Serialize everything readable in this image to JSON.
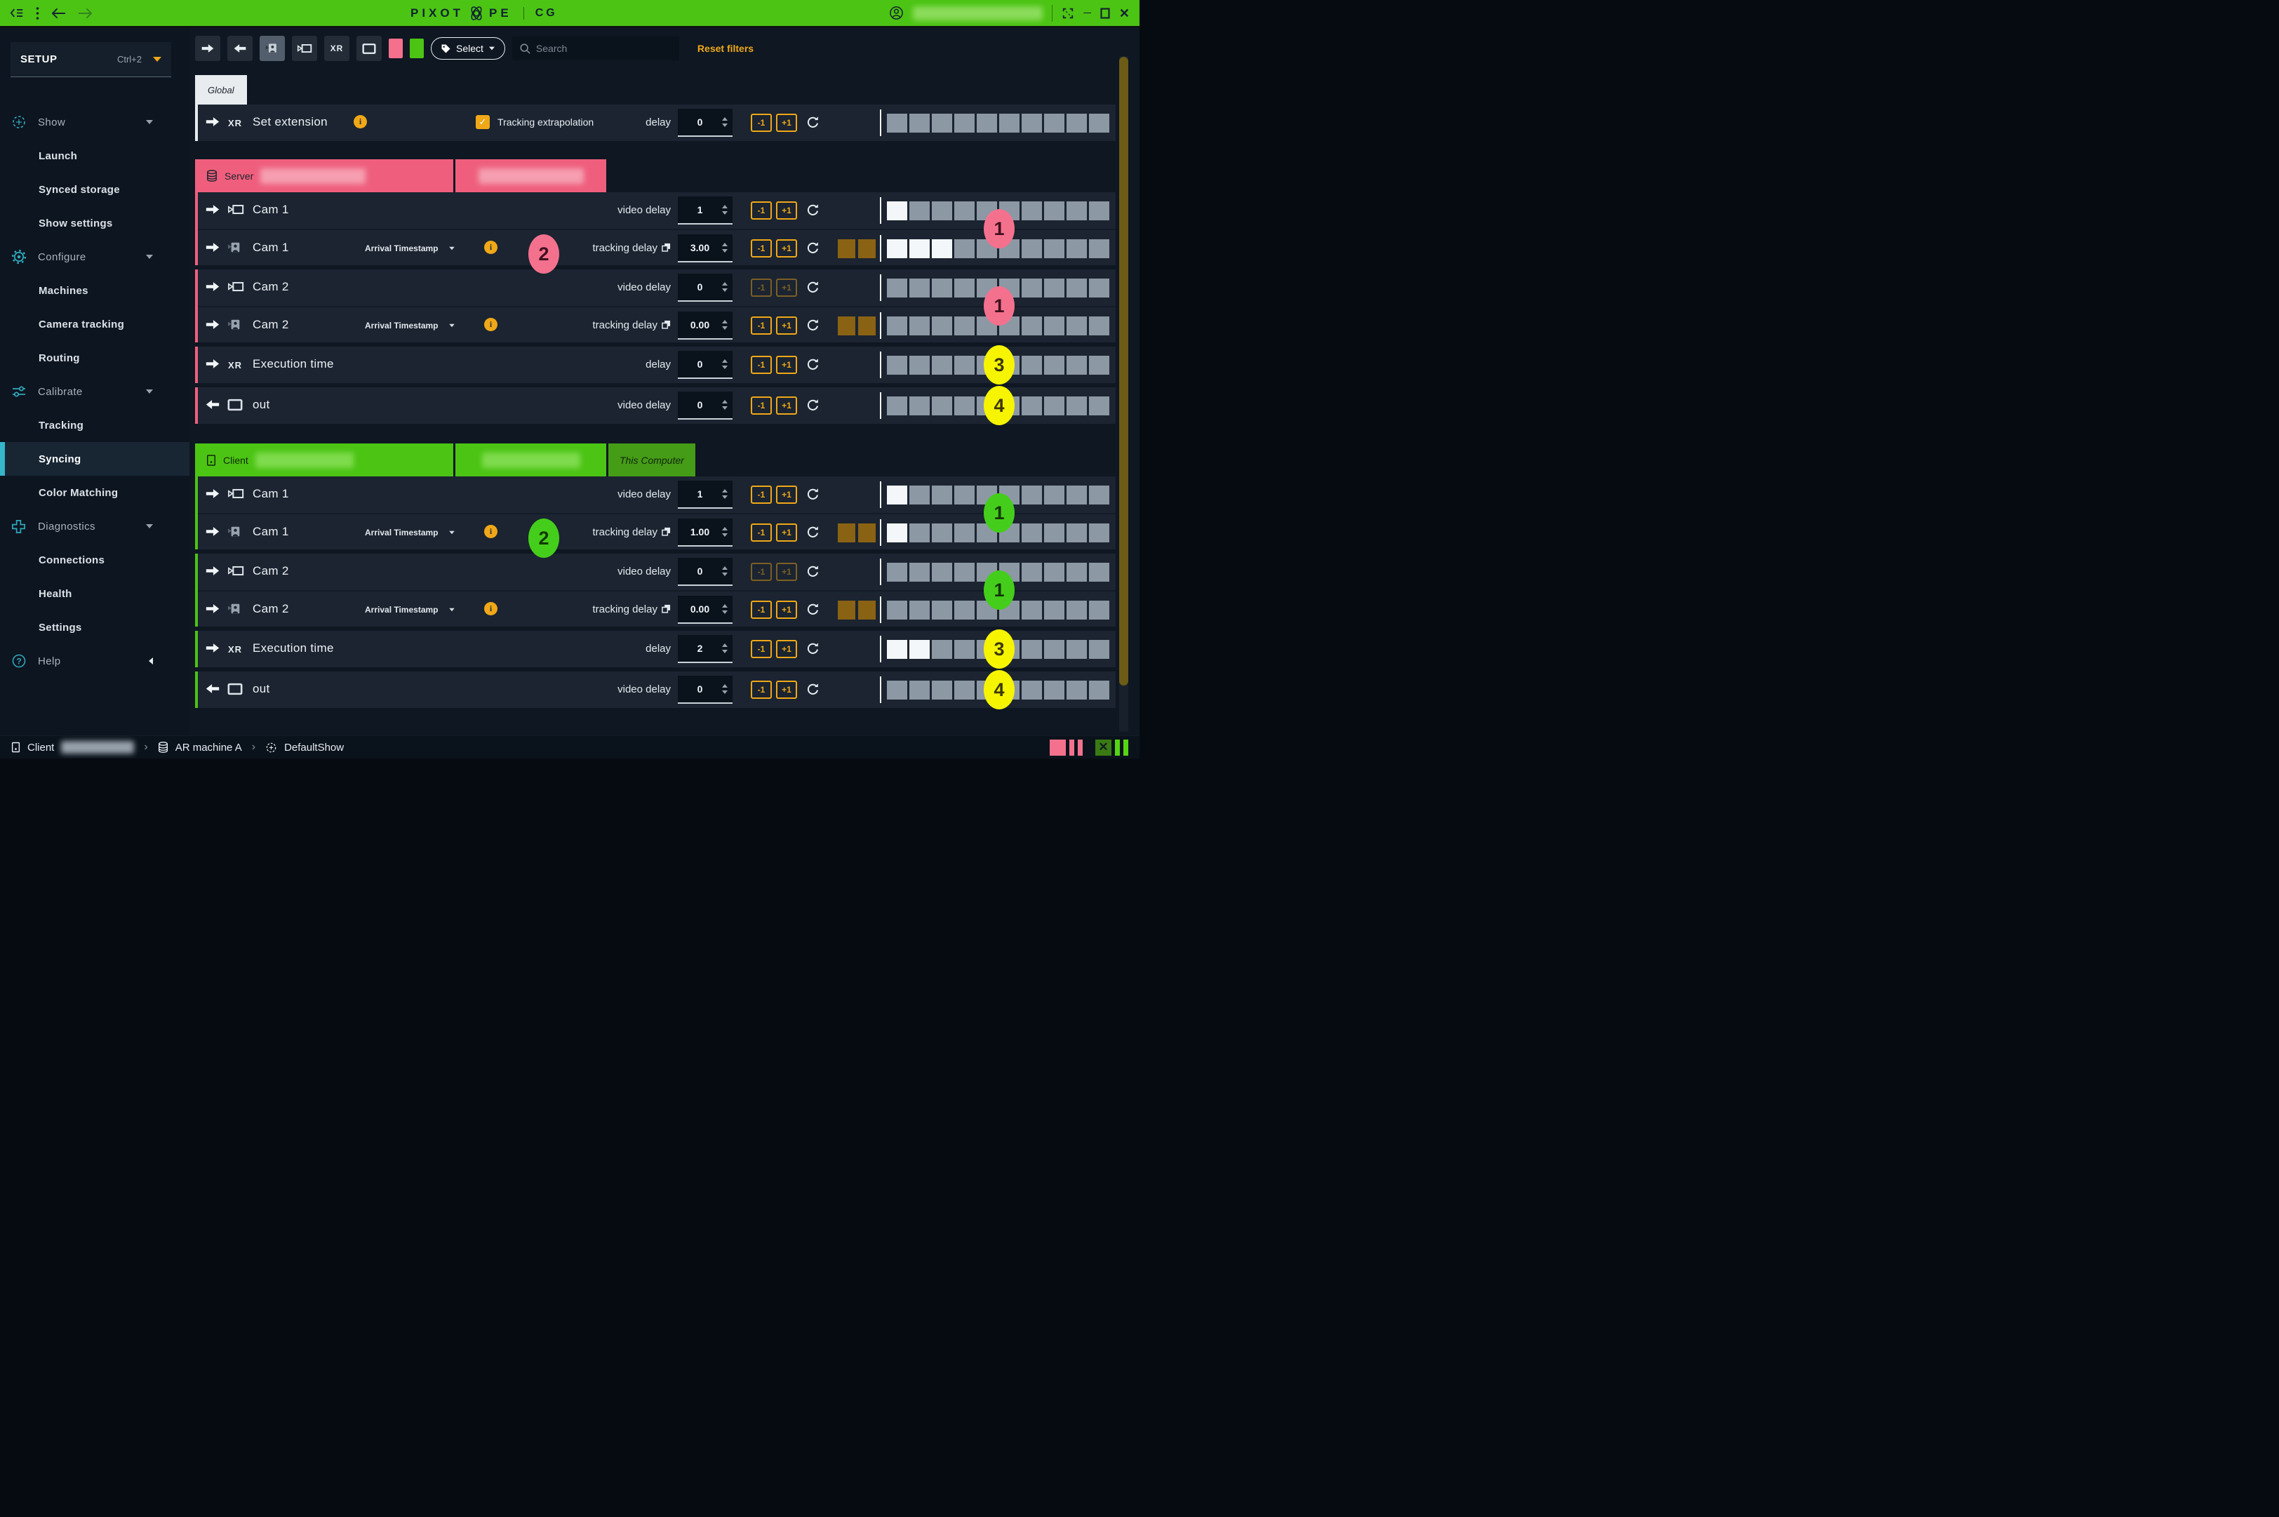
{
  "titlebar": {
    "logo_a": "PIXOT",
    "logo_b": "PE",
    "app": "CG"
  },
  "sidebar": {
    "setup_label": "SETUP",
    "setup_shortcut": "Ctrl+2",
    "items": [
      {
        "label": "Show",
        "icon": "show",
        "level": 0,
        "expand": "down"
      },
      {
        "label": "Launch",
        "level": 1
      },
      {
        "label": "Synced storage",
        "level": 1
      },
      {
        "label": "Show settings",
        "level": 1
      },
      {
        "label": "Configure",
        "icon": "gear",
        "level": 0,
        "expand": "down"
      },
      {
        "label": "Machines",
        "level": 1
      },
      {
        "label": "Camera tracking",
        "level": 1
      },
      {
        "label": "Routing",
        "level": 1
      },
      {
        "label": "Calibrate",
        "icon": "sliders",
        "level": 0,
        "expand": "down"
      },
      {
        "label": "Tracking",
        "level": 1
      },
      {
        "label": "Syncing",
        "level": 1,
        "selected": true
      },
      {
        "label": "Color Matching",
        "level": 1
      },
      {
        "label": "Diagnostics",
        "icon": "diagnostics",
        "level": 0,
        "expand": "down"
      },
      {
        "label": "Connections",
        "level": 1
      },
      {
        "label": "Health",
        "level": 1
      },
      {
        "label": "Settings",
        "level": 1
      },
      {
        "label": "Help",
        "icon": "help",
        "level": 0,
        "expand": "left"
      }
    ]
  },
  "toolbar": {
    "xr": "XR",
    "select": "Select",
    "search_placeholder": "Search",
    "reset": "Reset filters",
    "swatch_pink": "#F4708D",
    "swatch_green": "#4CC414"
  },
  "controls": {
    "minus": "-1",
    "plus": "+1"
  },
  "sections": {
    "global": {
      "tab": "Global",
      "row": {
        "type": "xr",
        "icon_label": "XR",
        "name": "Set extension",
        "info": true,
        "checkbox_label": "Tracking extrapolation",
        "checkbox_checked": true,
        "delay_label": "delay",
        "value": "0",
        "bar": {
          "pre": 0,
          "white": 0,
          "gray": 10
        }
      }
    },
    "server": {
      "tab_label": "Server",
      "accent": "pink",
      "badge_color": "pink",
      "groups": [
        {
          "badge_right": {
            "text": "1",
            "color": "pink"
          },
          "badge_left": {
            "text": "2",
            "color": "pink"
          },
          "rows": [
            {
              "type": "video",
              "name": "Cam 1",
              "delay_label": "video delay",
              "value": "1",
              "bar": {
                "pre": 0,
                "white": 1,
                "gray": 9
              }
            },
            {
              "type": "tracking",
              "name": "Cam 1",
              "timestamp": "Arrival Timestamp",
              "info": true,
              "copy_icon": true,
              "delay_label": "tracking delay",
              "value": "3.00",
              "bar": {
                "pre": 2,
                "white": 3,
                "gray": 7
              }
            }
          ]
        },
        {
          "badge_right": {
            "text": "1",
            "color": "pink"
          },
          "rows": [
            {
              "type": "video",
              "name": "Cam 2",
              "delay_label": "video delay",
              "value": "0",
              "dim_buttons": true,
              "bar": {
                "pre": 0,
                "white": 0,
                "gray": 10
              }
            },
            {
              "type": "tracking",
              "name": "Cam 2",
              "timestamp": "Arrival Timestamp",
              "info": true,
              "copy_icon": true,
              "delay_label": "tracking delay",
              "value": "0.00",
              "bar": {
                "pre": 2,
                "white": 0,
                "gray": 10
              }
            }
          ]
        },
        {
          "badge_right": {
            "text": "3",
            "color": "yellow"
          },
          "rows": [
            {
              "type": "xr",
              "icon_label": "XR",
              "name": "Execution time",
              "delay_label": "delay",
              "value": "0",
              "bar": {
                "pre": 0,
                "white": 0,
                "gray": 10
              }
            }
          ]
        },
        {
          "badge_right": {
            "text": "4",
            "color": "yellow"
          },
          "rows": [
            {
              "type": "out",
              "name": "out",
              "delay_label": "video delay",
              "value": "0",
              "bar": {
                "pre": 0,
                "white": 0,
                "gray": 10
              }
            }
          ]
        }
      ]
    },
    "client": {
      "tab_label": "Client",
      "accent": "green",
      "badge_color": "green",
      "extra_tab": "This Computer",
      "groups": [
        {
          "badge_right": {
            "text": "1",
            "color": "green"
          },
          "badge_left": {
            "text": "2",
            "color": "green"
          },
          "rows": [
            {
              "type": "video",
              "name": "Cam 1",
              "delay_label": "video delay",
              "value": "1",
              "bar": {
                "pre": 0,
                "white": 1,
                "gray": 9
              }
            },
            {
              "type": "tracking",
              "name": "Cam 1",
              "timestamp": "Arrival Timestamp",
              "info": true,
              "copy_icon": true,
              "delay_label": "tracking delay",
              "value": "1.00",
              "bar": {
                "pre": 2,
                "white": 1,
                "gray": 9
              }
            }
          ]
        },
        {
          "badge_right": {
            "text": "1",
            "color": "green"
          },
          "rows": [
            {
              "type": "video",
              "name": "Cam 2",
              "delay_label": "video delay",
              "value": "0",
              "dim_buttons": true,
              "bar": {
                "pre": 0,
                "white": 0,
                "gray": 10
              }
            },
            {
              "type": "tracking",
              "name": "Cam 2",
              "timestamp": "Arrival Timestamp",
              "info": true,
              "copy_icon": true,
              "delay_label": "tracking delay",
              "value": "0.00",
              "bar": {
                "pre": 2,
                "white": 0,
                "gray": 10
              }
            }
          ]
        },
        {
          "badge_right": {
            "text": "3",
            "color": "yellow"
          },
          "rows": [
            {
              "type": "xr",
              "icon_label": "XR",
              "name": "Execution time",
              "delay_label": "delay",
              "value": "2",
              "bar": {
                "pre": 0,
                "white": 2,
                "gray": 8
              }
            }
          ]
        },
        {
          "badge_right": {
            "text": "4",
            "color": "yellow"
          },
          "rows": [
            {
              "type": "out",
              "name": "out",
              "delay_label": "video delay",
              "value": "0",
              "bar": {
                "pre": 0,
                "white": 0,
                "gray": 10
              }
            }
          ]
        }
      ]
    }
  },
  "statusbar": {
    "client_label": "Client",
    "machine": "AR machine A",
    "show_name": "DefaultShow"
  },
  "colors": {
    "topbar_green": "#4CC414",
    "accent_orange": "#F0A818",
    "badge_pink": "#F4718E",
    "badge_green": "#44CE1B",
    "badge_yellow": "#F6F400",
    "segment_gray": "#8D98A5",
    "segment_white": "#F4F7F9",
    "segment_brown": "#8A6214"
  }
}
